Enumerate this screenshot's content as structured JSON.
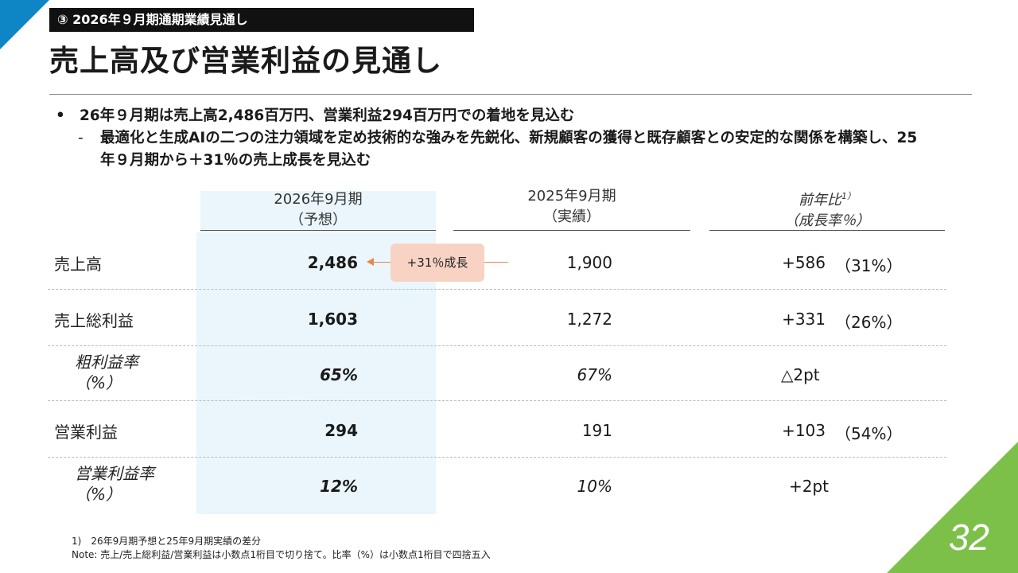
{
  "section_label": "③ 2026年９月期通期業績見通し",
  "title": "売上高及び営業利益の見通し",
  "bullets": {
    "main": "26年９月期は売上高2,486百万円、営業利益294百万円での着地を見込む",
    "sub": "最適化と生成AIの二つの注力領域を定め技術的な強みを先鋭化、新規顧客の獲得と既存顧客との安定的な関係を構築し、25年９月期から＋31％の売上成長を見込む"
  },
  "columns": {
    "forecast": {
      "line1": "2026年9月期",
      "line2": "（予想）"
    },
    "actual": {
      "line1": "2025年9月期",
      "line2": "（実績）"
    },
    "yoy": {
      "line1": "前年比",
      "sup": "1）",
      "line2": "（成長率％）"
    }
  },
  "growth_callout": "+31％成長",
  "rows": [
    {
      "label": "売上高",
      "forecast": "2,486",
      "actual": "1,900",
      "diff": "+586",
      "rate": "（31%）"
    },
    {
      "label": "売上総利益",
      "forecast": "1,603",
      "actual": "1,272",
      "diff": "+331",
      "rate": "（26%）"
    },
    {
      "label_line1": "粗利益率",
      "label_line2": "（%）",
      "forecast": "65%",
      "actual": "67%",
      "diff": "△2pt"
    },
    {
      "label": "営業利益",
      "forecast": "294",
      "actual": "191",
      "diff": "+103",
      "rate": "（54%）"
    },
    {
      "label_line1": "営業利益率",
      "label_line2": "（%）",
      "forecast": "12%",
      "actual": "10%",
      "diff": "+2pt"
    }
  ],
  "footnotes": {
    "note1": "1)　26年9月期予想と25年9月期実績の差分",
    "note2": "Note: 売上/売上総利益/営業利益は小数点1桁目で切り捨て。比率（%）は小数点1桁目で四捨五入"
  },
  "page_number": "32",
  "colors": {
    "accent_blue": "#0e86c6",
    "accent_green": "#7cc04a",
    "highlight": "#eaf6fb",
    "callout": "#f8d3c4",
    "arrow": "#e8884f"
  }
}
